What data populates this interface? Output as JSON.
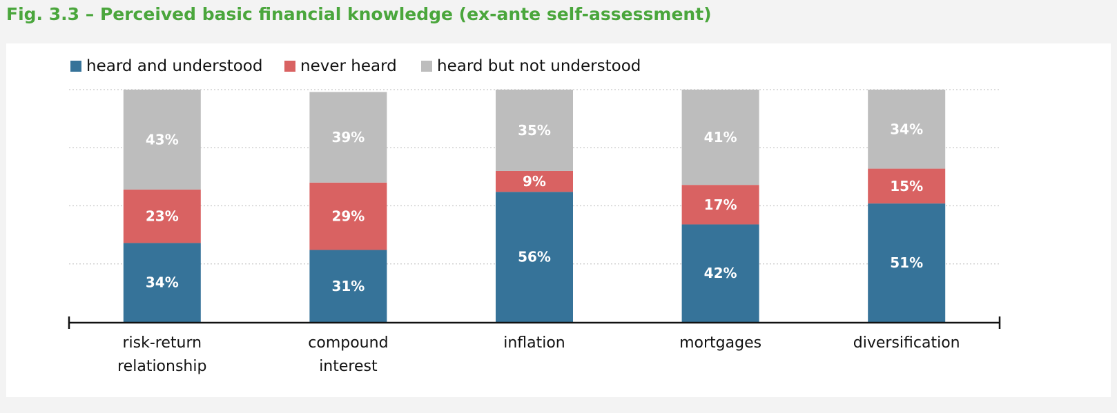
{
  "figure": {
    "title": "Fig. 3.3 – Perceived basic financial knowledge (ex-ante self-assessment)"
  },
  "chart_data": {
    "type": "bar",
    "stacked": true,
    "percent_stacked": true,
    "categories": [
      [
        "risk-return",
        "relationship"
      ],
      [
        "compound",
        "interest"
      ],
      [
        "inflation"
      ],
      [
        "mortgages"
      ],
      [
        "diversification"
      ]
    ],
    "series": [
      {
        "name": "heard and understood",
        "color": "#367399",
        "values": [
          34,
          31,
          56,
          42,
          51
        ],
        "labels": [
          "34%",
          "31%",
          "56%",
          "42%",
          "51%"
        ]
      },
      {
        "name": "never heard",
        "color": "#d96262",
        "values": [
          23,
          29,
          9,
          17,
          15
        ],
        "labels": [
          "23%",
          "29%",
          "9%",
          "17%",
          "15%"
        ]
      },
      {
        "name": "heard but not understood",
        "color": "#bdbdbd",
        "values": [
          43,
          39,
          35,
          41,
          34
        ],
        "labels": [
          "43%",
          "39%",
          "35%",
          "41%",
          "34%"
        ]
      }
    ],
    "ylim": [
      0,
      100
    ],
    "legend": "top-left",
    "grid": true,
    "xlabel": "",
    "ylabel": ""
  }
}
